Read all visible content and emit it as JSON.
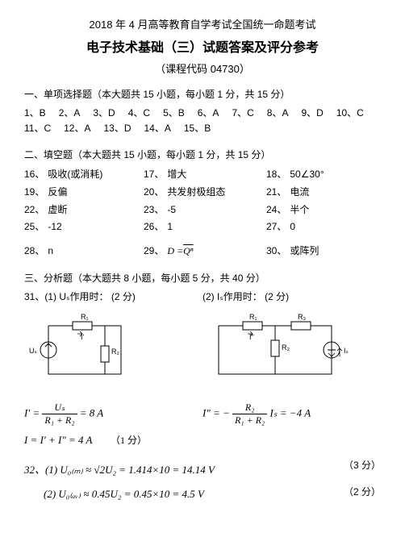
{
  "header": {
    "line1": "2018 年 4 月高等教育自学考试全国统一命题考试",
    "line2": "电子技术基础（三）试题答案及评分参考",
    "line3": "（课程代码  04730）"
  },
  "section1": {
    "title": "一、单项选择题（本大题共 15 小题，每小题 1 分，共 15 分）",
    "items": [
      "1、B",
      "2、A",
      "3、D",
      "4、C",
      "5、B",
      "6、A",
      "7、C",
      "8、A",
      "9、D",
      "10、C",
      "11、C",
      "12、A",
      "13、D",
      "14、A",
      "15、B"
    ]
  },
  "section2": {
    "title": "二、填空题（本大题共 15 小题，每小题 1 分，共 15 分）",
    "rows": [
      [
        {
          "n": "16、",
          "v": "吸收(或消耗)"
        },
        {
          "n": "17、",
          "v": "增大"
        },
        {
          "n": "18、",
          "v": "50∠30°"
        }
      ],
      [
        {
          "n": "19、",
          "v": "反偏"
        },
        {
          "n": "20、",
          "v": "共发射极组态"
        },
        {
          "n": "21、",
          "v": "电流"
        }
      ],
      [
        {
          "n": "22、",
          "v": "虚断"
        },
        {
          "n": "23、",
          "v": "-5"
        },
        {
          "n": "24、",
          "v": "半个"
        }
      ],
      [
        {
          "n": "25、",
          "v": "-12"
        },
        {
          "n": "26、",
          "v": "1"
        },
        {
          "n": "27、",
          "v": "0"
        }
      ],
      [
        {
          "n": "28、",
          "v": "n"
        },
        {
          "n": "29、",
          "v": ""
        },
        {
          "n": "30、",
          "v": "或阵列"
        }
      ]
    ],
    "q29_prefix": "D =",
    "q29_expr": "Qⁿ"
  },
  "section3": {
    "title": "三、分析题（本大题共 8 小题，每小题 5 分，共 40 分）",
    "q31": {
      "left": "31、(1) Uₛ作用时：    (2 分)",
      "right": "(2) Iₛ作用时：    (2 分)"
    },
    "circuit_labels": {
      "R1": "R₁",
      "R2": "R₂",
      "R3": "R₃",
      "Us": "Uₛ",
      "Is": "Iₛ",
      "I1": "I'",
      "I2": "I\""
    },
    "eq1_lhs": "I' =",
    "eq1_num": "Uₛ",
    "eq1_den": "R₁ + R₂",
    "eq1_rhs": "= 8 A",
    "eq2_lhs": "I\" = −",
    "eq2_num": "R₂",
    "eq2_den": "R₁ + R₂",
    "eq2_mid": " Iₛ = −4 A",
    "eq3": "I = I' + I\" = 4 A",
    "eq3_pts": "（1 分）"
  },
  "q32": {
    "line1": "32、(1) U₀₍ₘ₎ ≈ √2U₂ = 1.414×10 = 14.14 V",
    "line1_pts": "（3 分）",
    "line2": "(2) U₀₍ₐᵥ₎ ≈ 0.45U₂ = 0.45×10 = 4.5 V",
    "line2_pts": "（2 分）"
  }
}
